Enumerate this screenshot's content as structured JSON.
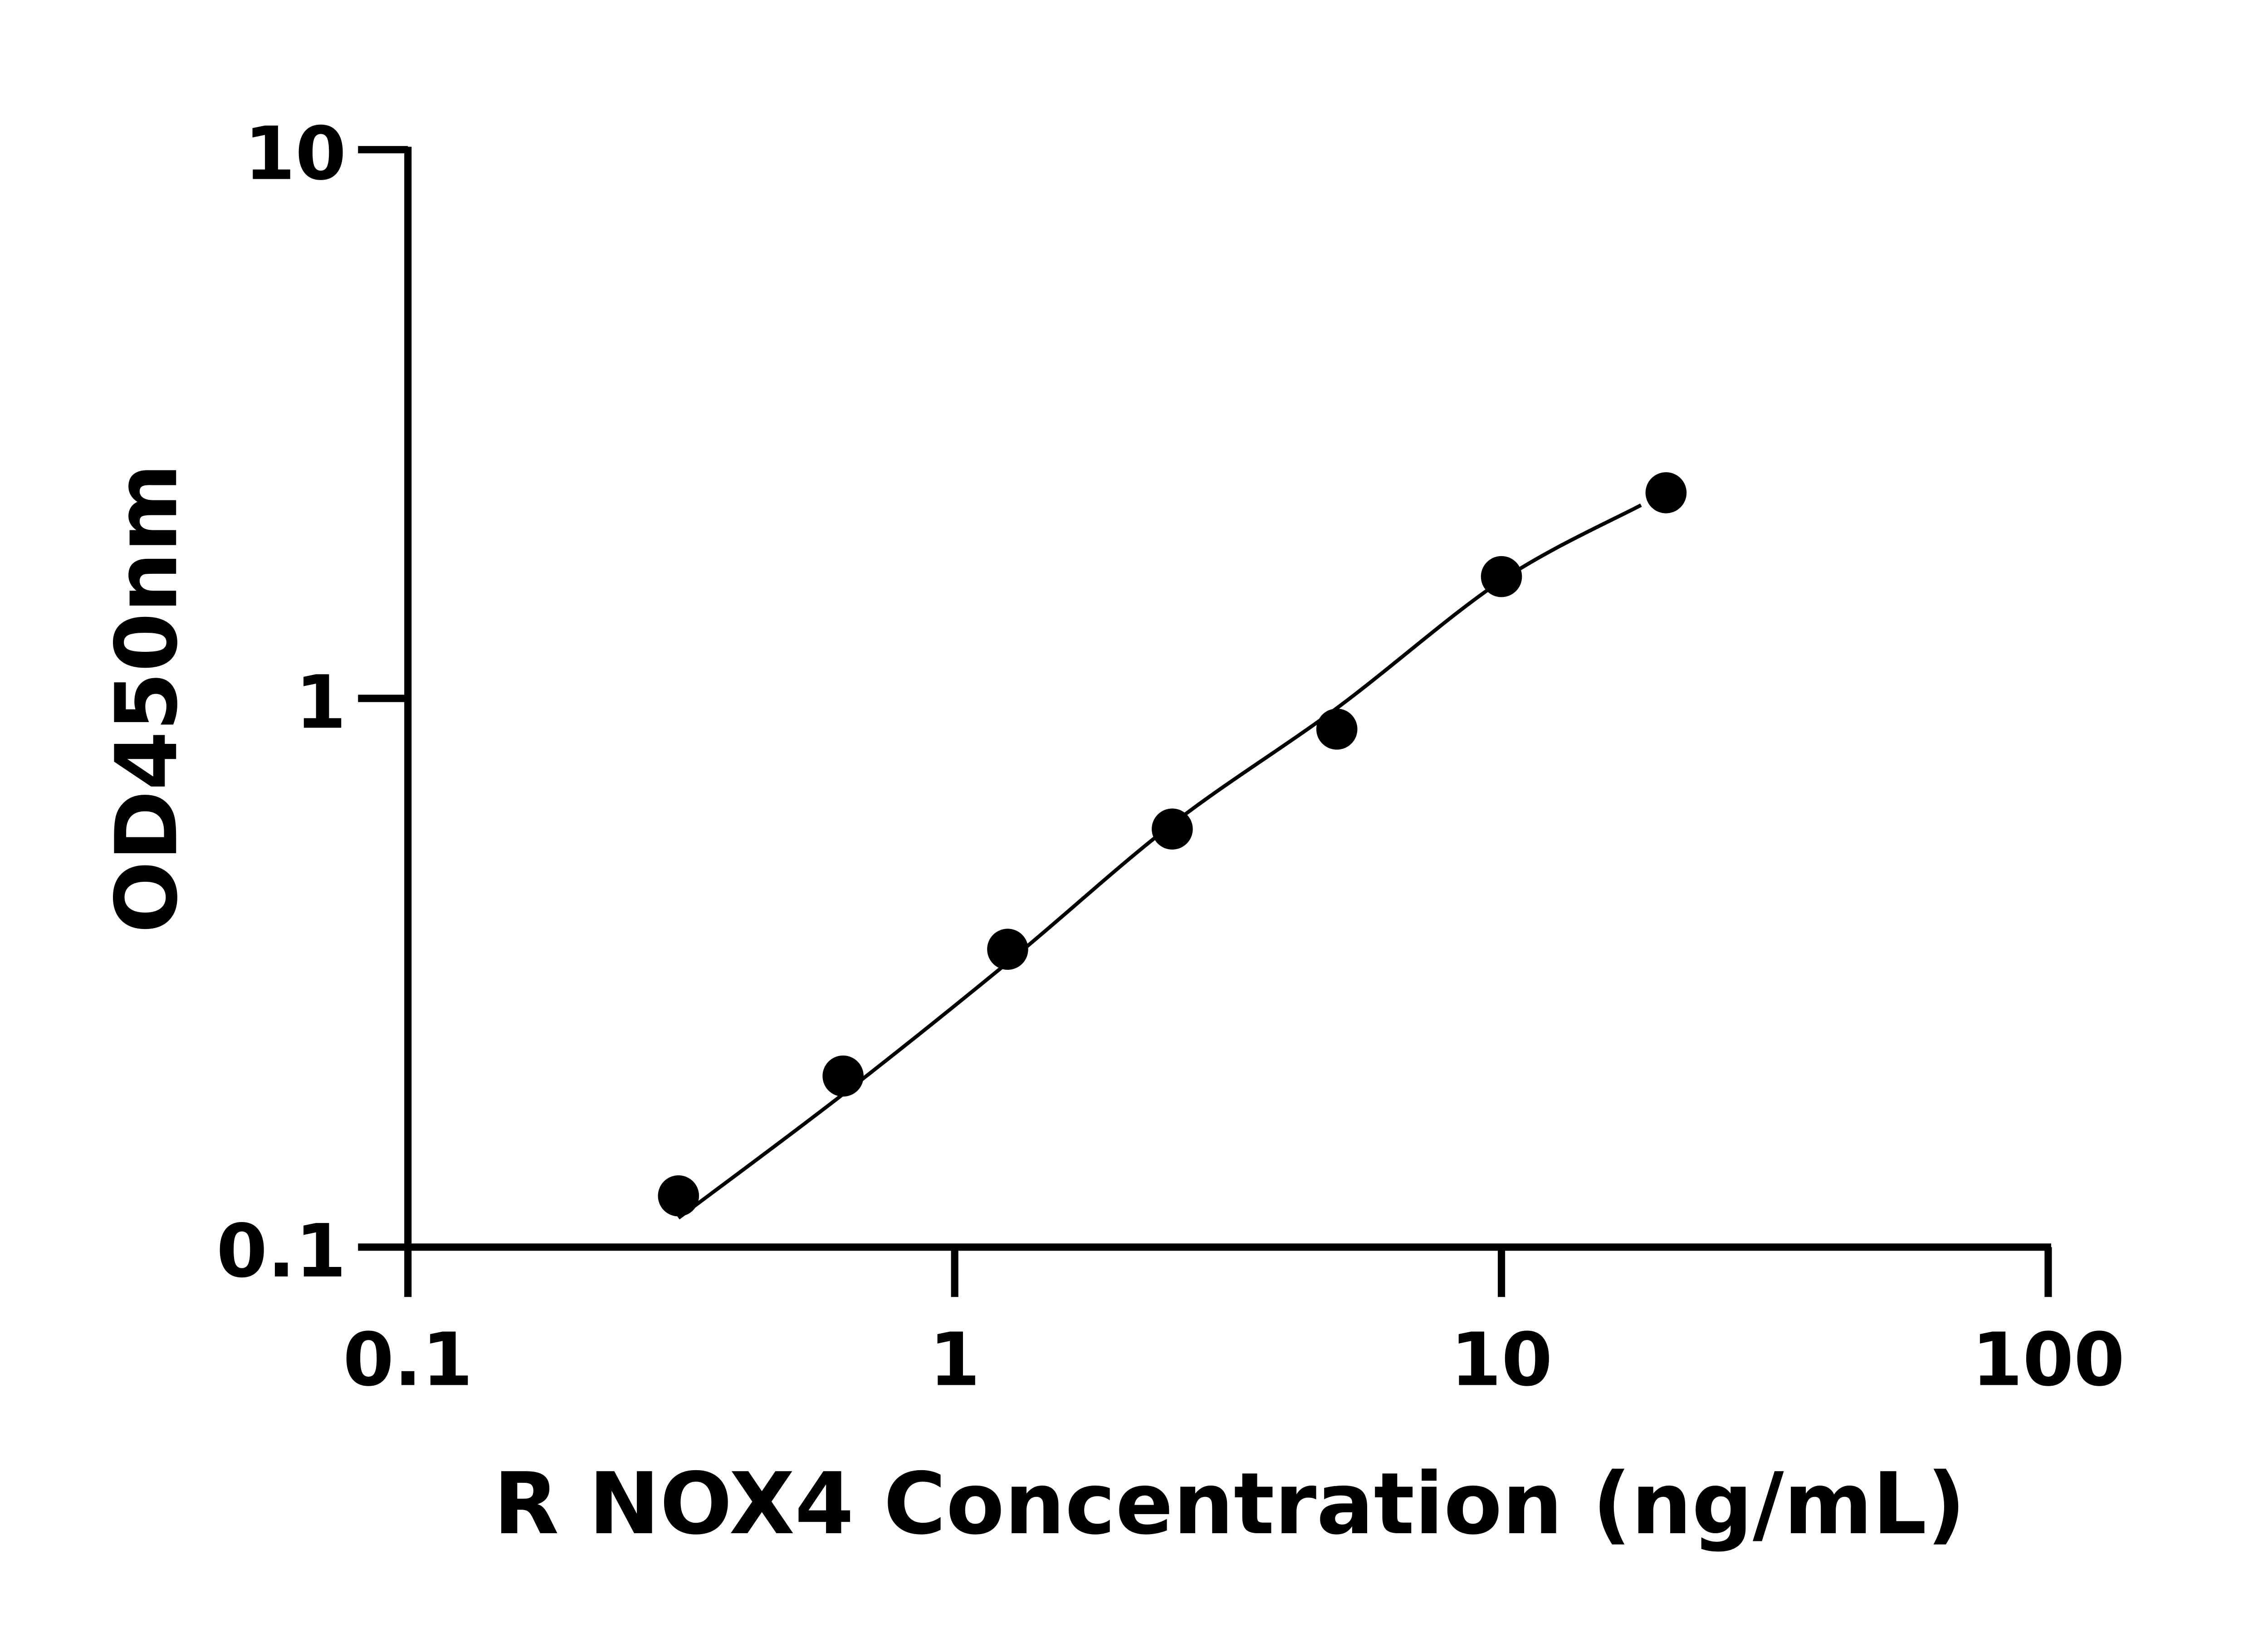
{
  "chart_data": {
    "type": "scatter",
    "title": "",
    "xlabel": "R NOX4 Concentration (ng/mL)",
    "ylabel": "OD450nm",
    "x_scale": "log",
    "y_scale": "log",
    "xlim": [
      0.1,
      100
    ],
    "ylim": [
      0.1,
      10
    ],
    "x_ticks": [
      "0.1",
      "1",
      "10",
      "100"
    ],
    "y_ticks": [
      "0.1",
      "1",
      "10"
    ],
    "grid": false,
    "legend": "none",
    "series": [
      {
        "x": [
          0.3125,
          0.625,
          1.25,
          2.5,
          5,
          10,
          20
        ],
        "y": [
          0.124,
          0.205,
          0.349,
          0.578,
          0.879,
          1.667,
          2.37
        ],
        "color": "#000000"
      }
    ],
    "fit_curve": {
      "x": [
        0.3125,
        0.625,
        1.25,
        2.5,
        5,
        10,
        18
      ],
      "y": [
        0.113,
        0.19,
        0.33,
        0.59,
        0.96,
        1.64,
        2.25
      ],
      "color": "#000000"
    }
  }
}
